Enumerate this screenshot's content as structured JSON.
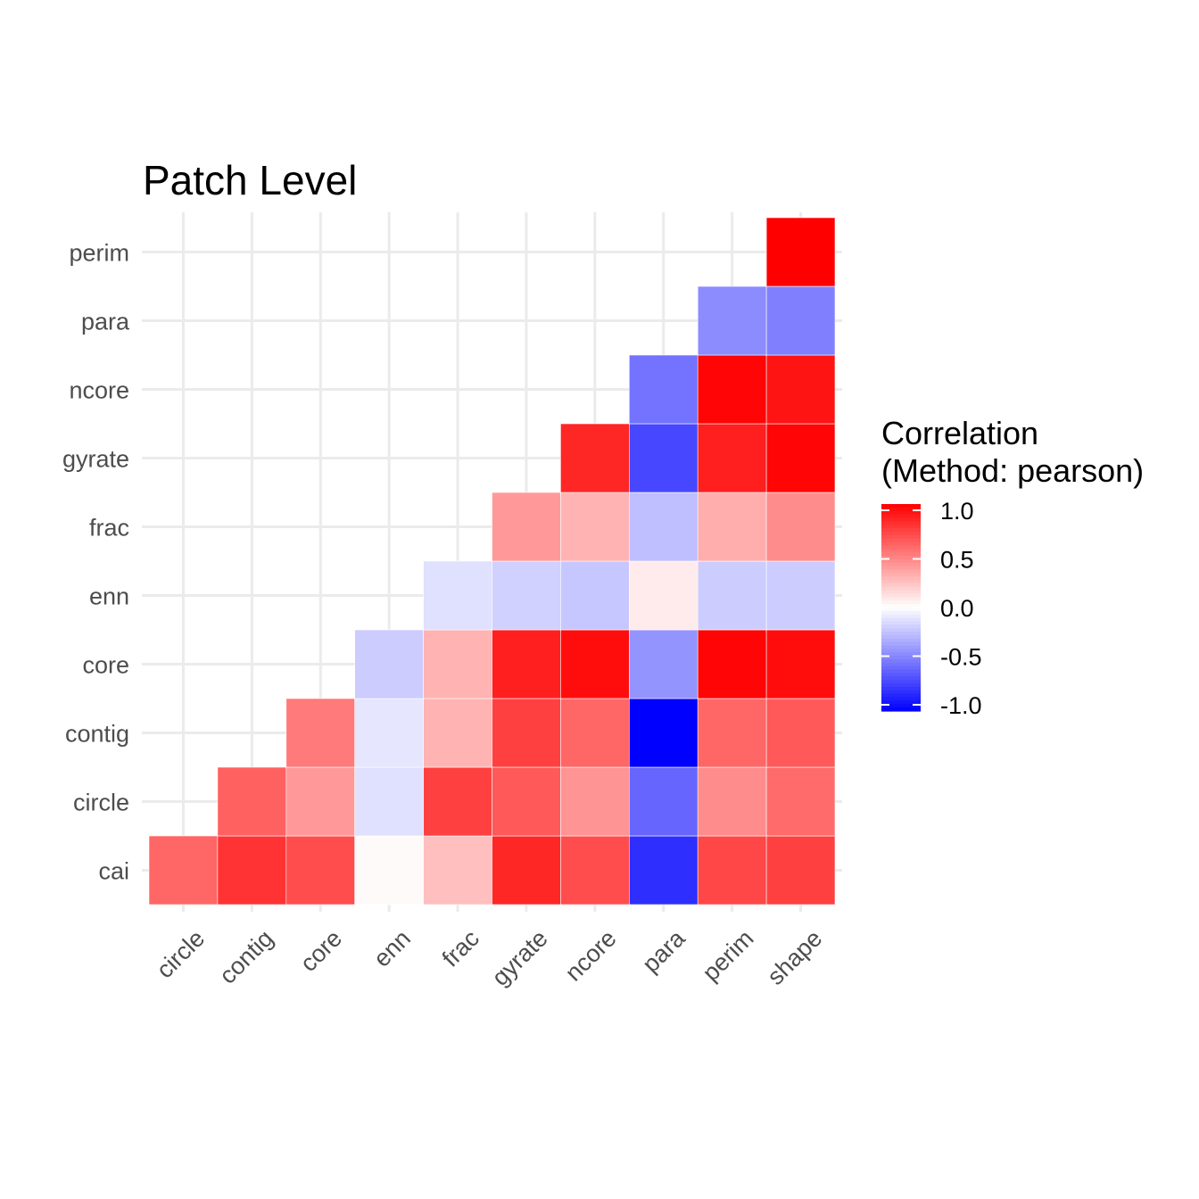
{
  "chart_data": {
    "type": "heatmap",
    "title": "Patch Level",
    "x_categories": [
      "circle",
      "contig",
      "core",
      "enn",
      "frac",
      "gyrate",
      "ncore",
      "para",
      "perim",
      "shape"
    ],
    "y_categories": [
      "cai",
      "circle",
      "contig",
      "core",
      "enn",
      "frac",
      "gyrate",
      "ncore",
      "para",
      "perim"
    ],
    "cells": [
      {
        "y": "cai",
        "x": "circle",
        "value": 0.6
      },
      {
        "y": "cai",
        "x": "contig",
        "value": 0.8
      },
      {
        "y": "cai",
        "x": "core",
        "value": 0.7
      },
      {
        "y": "cai",
        "x": "enn",
        "value": 0.02
      },
      {
        "y": "cai",
        "x": "frac",
        "value": 0.25
      },
      {
        "y": "cai",
        "x": "gyrate",
        "value": 0.85
      },
      {
        "y": "cai",
        "x": "ncore",
        "value": 0.7
      },
      {
        "y": "cai",
        "x": "para",
        "value": -0.82
      },
      {
        "y": "cai",
        "x": "perim",
        "value": 0.72
      },
      {
        "y": "cai",
        "x": "shape",
        "value": 0.75
      },
      {
        "y": "circle",
        "x": "contig",
        "value": 0.62
      },
      {
        "y": "circle",
        "x": "core",
        "value": 0.4
      },
      {
        "y": "circle",
        "x": "enn",
        "value": -0.12
      },
      {
        "y": "circle",
        "x": "frac",
        "value": 0.75
      },
      {
        "y": "circle",
        "x": "gyrate",
        "value": 0.65
      },
      {
        "y": "circle",
        "x": "ncore",
        "value": 0.42
      },
      {
        "y": "circle",
        "x": "para",
        "value": -0.6
      },
      {
        "y": "circle",
        "x": "perim",
        "value": 0.45
      },
      {
        "y": "circle",
        "x": "shape",
        "value": 0.58
      },
      {
        "y": "contig",
        "x": "core",
        "value": 0.52
      },
      {
        "y": "contig",
        "x": "enn",
        "value": -0.1
      },
      {
        "y": "contig",
        "x": "frac",
        "value": 0.3
      },
      {
        "y": "contig",
        "x": "gyrate",
        "value": 0.75
      },
      {
        "y": "contig",
        "x": "ncore",
        "value": 0.6
      },
      {
        "y": "contig",
        "x": "para",
        "value": -1.0
      },
      {
        "y": "contig",
        "x": "perim",
        "value": 0.6
      },
      {
        "y": "contig",
        "x": "shape",
        "value": 0.65
      },
      {
        "y": "core",
        "x": "enn",
        "value": -0.2
      },
      {
        "y": "core",
        "x": "frac",
        "value": 0.3
      },
      {
        "y": "core",
        "x": "gyrate",
        "value": 0.88
      },
      {
        "y": "core",
        "x": "ncore",
        "value": 0.95
      },
      {
        "y": "core",
        "x": "para",
        "value": -0.42
      },
      {
        "y": "core",
        "x": "perim",
        "value": 0.98
      },
      {
        "y": "core",
        "x": "shape",
        "value": 0.95
      },
      {
        "y": "enn",
        "x": "frac",
        "value": -0.12
      },
      {
        "y": "enn",
        "x": "gyrate",
        "value": -0.18
      },
      {
        "y": "enn",
        "x": "ncore",
        "value": -0.22
      },
      {
        "y": "enn",
        "x": "para",
        "value": 0.08
      },
      {
        "y": "enn",
        "x": "perim",
        "value": -0.2
      },
      {
        "y": "enn",
        "x": "shape",
        "value": -0.2
      },
      {
        "y": "frac",
        "x": "gyrate",
        "value": 0.4
      },
      {
        "y": "frac",
        "x": "ncore",
        "value": 0.3
      },
      {
        "y": "frac",
        "x": "para",
        "value": -0.25
      },
      {
        "y": "frac",
        "x": "perim",
        "value": 0.32
      },
      {
        "y": "frac",
        "x": "shape",
        "value": 0.45
      },
      {
        "y": "gyrate",
        "x": "ncore",
        "value": 0.85
      },
      {
        "y": "gyrate",
        "x": "para",
        "value": -0.72
      },
      {
        "y": "gyrate",
        "x": "perim",
        "value": 0.88
      },
      {
        "y": "gyrate",
        "x": "shape",
        "value": 0.98
      },
      {
        "y": "ncore",
        "x": "para",
        "value": -0.55
      },
      {
        "y": "ncore",
        "x": "perim",
        "value": 0.98
      },
      {
        "y": "ncore",
        "x": "shape",
        "value": 0.92
      },
      {
        "y": "para",
        "x": "perim",
        "value": -0.45
      },
      {
        "y": "para",
        "x": "shape",
        "value": -0.5
      },
      {
        "y": "perim",
        "x": "shape",
        "value": 1.0
      }
    ],
    "legend": {
      "title_line1": "Correlation",
      "title_line2": "(Method: pearson)",
      "ticks": [
        "1.0",
        "0.5",
        "0.0",
        "-0.5",
        "-1.0"
      ],
      "range": [
        -1.0,
        1.0
      ],
      "low_color": "#0000ff",
      "mid_color": "#ffffff",
      "high_color": "#ff0000",
      "position": "right"
    },
    "grid": true
  }
}
